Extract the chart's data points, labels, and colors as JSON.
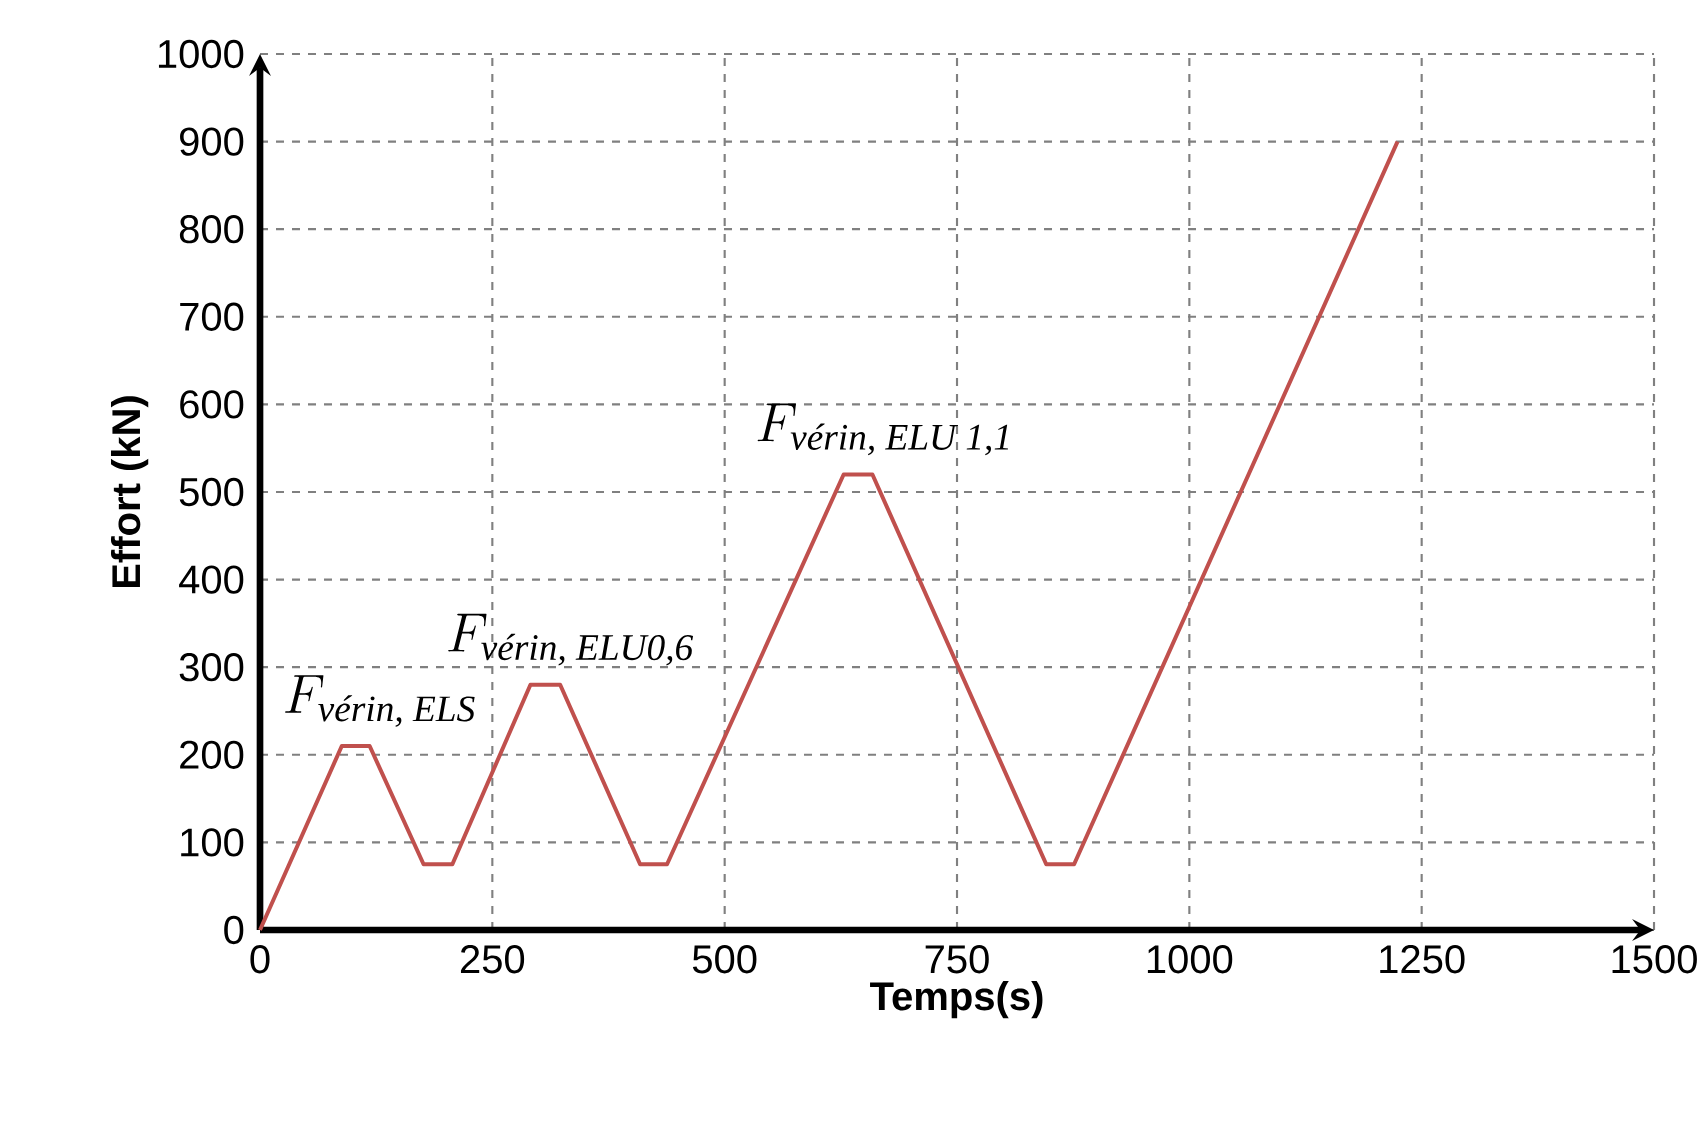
{
  "chart_data": {
    "type": "line",
    "xlabel": "Temps(s)",
    "ylabel": "Effort (kN)",
    "x": [
      0,
      88,
      118,
      176,
      207,
      291,
      323,
      409,
      438,
      628,
      659,
      846,
      876,
      1224
    ],
    "series": [
      {
        "color": "#c0504d",
        "values": [
          0,
          210,
          210,
          75,
          75,
          280,
          280,
          75,
          75,
          520,
          520,
          75,
          75,
          900
        ]
      }
    ],
    "xlim": [
      0,
      1500
    ],
    "ylim": [
      0,
      1000
    ],
    "xticks": [
      0,
      250,
      500,
      750,
      1000,
      1250,
      1500
    ],
    "yticks": [
      0,
      100,
      200,
      300,
      400,
      500,
      600,
      700,
      800,
      900,
      1000
    ],
    "grid": true,
    "marker": "none",
    "line_style": "solid",
    "annotations": [
      {
        "text": "F_{\\textit{vérin, ELS}}",
        "x": 100,
        "y": 210
      },
      {
        "text": "F_{\\textit{vérin, ELU0,6}}",
        "x": 305,
        "y": 280
      },
      {
        "text": "F_{\\textit{vérin, ELU 1,1}}",
        "x": 643,
        "y": 520
      }
    ]
  }
}
